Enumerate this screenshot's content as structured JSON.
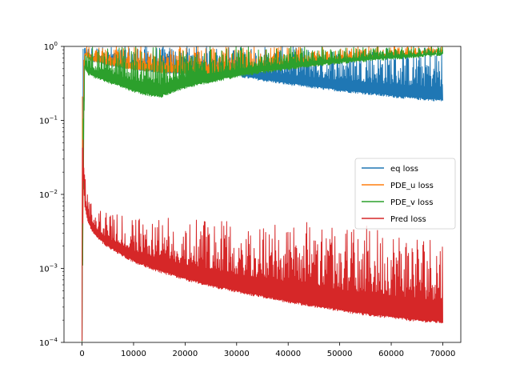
{
  "chart_data": {
    "type": "line",
    "title": "",
    "xlabel": "",
    "ylabel": "",
    "xlim": [
      -3500,
      73500
    ],
    "ylim": [
      0.0001,
      1
    ],
    "yscale": "log",
    "grid": false,
    "legend_position": "center-right",
    "x_ticks": [
      {
        "value": 0,
        "label": "0"
      },
      {
        "value": 10000,
        "label": "10000"
      },
      {
        "value": 20000,
        "label": "20000"
      },
      {
        "value": 30000,
        "label": "30000"
      },
      {
        "value": 40000,
        "label": "40000"
      },
      {
        "value": 50000,
        "label": "50000"
      },
      {
        "value": 60000,
        "label": "60000"
      },
      {
        "value": 70000,
        "label": "70000"
      }
    ],
    "y_ticks": [
      {
        "value": 0.0001,
        "base": "10",
        "exp": "−4"
      },
      {
        "value": 0.001,
        "base": "10",
        "exp": "−3"
      },
      {
        "value": 0.01,
        "base": "10",
        "exp": "−2"
      },
      {
        "value": 0.1,
        "base": "10",
        "exp": "−1"
      },
      {
        "value": 1,
        "base": "10",
        "exp": "0"
      }
    ],
    "series": [
      {
        "name": "eq loss",
        "color": "#1f77b4",
        "band": true,
        "x": [
          0,
          500,
          1000,
          2000,
          5000,
          10000,
          15000,
          20000,
          25000,
          30000,
          35000,
          40000,
          45000,
          50000,
          55000,
          60000,
          65000,
          70000
        ],
        "lower": [
          0.0001,
          0.75,
          0.7,
          0.62,
          0.55,
          0.48,
          0.44,
          0.42,
          0.41,
          0.39,
          0.34,
          0.3,
          0.27,
          0.245,
          0.225,
          0.205,
          0.19,
          0.18
        ],
        "upper": [
          0.9,
          1,
          1,
          1,
          1,
          1,
          1,
          1,
          1,
          1,
          1,
          1,
          1,
          1,
          1,
          1,
          1,
          1
        ]
      },
      {
        "name": "PDE_u loss",
        "color": "#ff7f0e",
        "band": true,
        "x": [
          0,
          500,
          1000,
          2000,
          5000,
          10000,
          15000,
          20000,
          25000,
          30000,
          35000,
          40000,
          45000,
          50000,
          55000,
          60000,
          65000,
          70000
        ],
        "lower": [
          0.0001,
          0.75,
          0.7,
          0.62,
          0.55,
          0.48,
          0.44,
          0.42,
          0.41,
          0.4,
          0.45,
          0.5,
          0.55,
          0.6,
          0.65,
          0.7,
          0.75,
          0.8
        ],
        "upper": [
          0.9,
          1,
          1,
          1,
          1,
          1,
          1,
          1,
          1,
          1,
          1,
          1,
          1,
          1,
          1,
          1,
          1,
          1
        ]
      },
      {
        "name": "PDE_v loss",
        "color": "#2ca02c",
        "band": true,
        "x": [
          0,
          500,
          1000,
          2000,
          5000,
          8000,
          10000,
          12000,
          15000,
          18000,
          20000,
          25000,
          30000,
          35000,
          40000,
          45000,
          50000,
          55000,
          60000,
          65000,
          70000
        ],
        "lower": [
          0.0001,
          0.5,
          0.42,
          0.38,
          0.32,
          0.27,
          0.24,
          0.22,
          0.2,
          0.24,
          0.27,
          0.32,
          0.38,
          0.43,
          0.48,
          0.53,
          0.58,
          0.62,
          0.66,
          0.7,
          0.75
        ],
        "upper": [
          0.9,
          1,
          1,
          1,
          1,
          1,
          1,
          1,
          1,
          1,
          1,
          1,
          1,
          1,
          1,
          1,
          1,
          1,
          1,
          1,
          1
        ]
      },
      {
        "name": "Pred loss",
        "color": "#d62728",
        "band": true,
        "x": [
          0,
          200,
          500,
          1000,
          2000,
          3000,
          5000,
          7500,
          10000,
          15000,
          20000,
          25000,
          30000,
          35000,
          40000,
          45000,
          50000,
          55000,
          60000,
          65000,
          70000
        ],
        "lower": [
          0.0001,
          0.02,
          0.007,
          0.0045,
          0.003,
          0.0025,
          0.0019,
          0.0015,
          0.0012,
          0.00088,
          0.00069,
          0.00056,
          0.00047,
          0.0004,
          0.00034,
          0.0003,
          0.00026,
          0.00023,
          0.00021,
          0.00019,
          0.00018
        ],
        "upper": [
          0.085,
          0.06,
          0.03,
          0.012,
          0.009,
          0.007,
          0.006,
          0.0055,
          0.005,
          0.005,
          0.0048,
          0.0047,
          0.0045,
          0.0044,
          0.0043,
          0.0042,
          0.004,
          0.0038,
          0.0036,
          0.0033,
          0.003
        ]
      }
    ]
  }
}
